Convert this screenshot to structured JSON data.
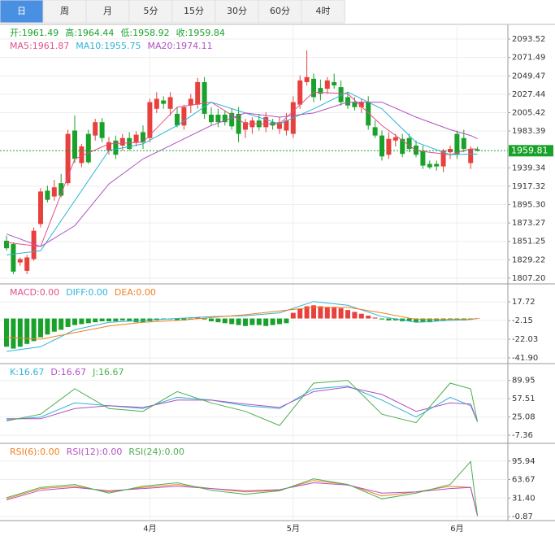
{
  "tabs": [
    "日",
    "周",
    "月",
    "5分",
    "15分",
    "30分",
    "60分",
    "4时"
  ],
  "active_tab": 0,
  "chart_data": [
    {
      "type": "candlestick",
      "up_color": "#e8403c",
      "down_color": "#19a22a",
      "ohlc_labels": [
        "开:",
        "高:",
        "低:",
        "收:"
      ],
      "ohlc_color": "#19a22a",
      "categories": [
        null,
        null,
        null,
        null,
        null,
        null,
        null,
        null,
        null,
        null,
        null,
        null,
        null,
        null,
        null,
        null,
        null,
        null,
        null,
        null,
        null,
        "4月",
        null,
        null,
        null,
        null,
        null,
        null,
        null,
        null,
        null,
        null,
        null,
        null,
        null,
        null,
        null,
        null,
        null,
        null,
        null,
        null,
        "5月",
        null,
        null,
        null,
        null,
        null,
        null,
        null,
        null,
        null,
        null,
        null,
        null,
        null,
        null,
        null,
        null,
        null,
        null,
        null,
        null,
        null,
        null,
        null,
        "6月",
        null,
        null,
        null
      ],
      "open": [
        1852,
        1848,
        1826,
        1816,
        1830,
        1872,
        1912,
        1905,
        1921,
        1921,
        1984,
        1945,
        1980,
        1978,
        1994,
        1960,
        1972,
        1966,
        1975,
        1970,
        1982,
        1975,
        2010,
        2020,
        2010,
        2004,
        1990,
        2014,
        2015,
        2042,
        2003,
        2003,
        2003,
        2005,
        2004,
        1985,
        1988,
        1996,
        1988,
        1994,
        1986,
        1984,
        1980,
        2015,
        2042,
        2046,
        2035,
        2034,
        2042,
        2036,
        2024,
        2018,
        2012,
        2018,
        1988,
        1978,
        1955,
        1972,
        1974,
        1975,
        1966,
        1960,
        1944,
        1944,
        1941,
        1958,
        1980,
        1975,
        1945,
        1961.49
      ],
      "high": [
        1858,
        1850,
        1832,
        1835,
        1868,
        1915,
        1918,
        1925,
        1932,
        1985,
        2002,
        1968,
        1985,
        1998,
        1999,
        1976,
        1978,
        1980,
        1982,
        1983,
        1990,
        2022,
        2030,
        2025,
        2030,
        2012,
        2015,
        2028,
        2047,
        2048,
        2012,
        2010,
        2008,
        2010,
        2012,
        1998,
        2000,
        2004,
        2006,
        1998,
        2000,
        2005,
        2025,
        2050,
        2080,
        2052,
        2045,
        2048,
        2052,
        2044,
        2030,
        2024,
        2022,
        2025,
        1996,
        1984,
        1982,
        1980,
        1980,
        1980,
        1972,
        1966,
        1948,
        1948,
        1962,
        1966,
        1984,
        1985,
        1965,
        1964.44
      ],
      "low": [
        1840,
        1812,
        1822,
        1812,
        1828,
        1868,
        1898,
        1900,
        1904,
        1918,
        1945,
        1940,
        1944,
        1972,
        1970,
        1955,
        1950,
        1960,
        1960,
        1965,
        1962,
        1970,
        2005,
        2010,
        2002,
        1988,
        1985,
        2005,
        2010,
        1998,
        1990,
        1988,
        1990,
        1985,
        1970,
        1975,
        1980,
        1984,
        1982,
        1985,
        1980,
        1978,
        1975,
        2010,
        2038,
        2018,
        2020,
        2028,
        2034,
        2014,
        2010,
        2008,
        2005,
        1985,
        1975,
        1948,
        1950,
        1965,
        1952,
        1958,
        1952,
        1938,
        1938,
        1936,
        1934,
        1950,
        1950,
        1958,
        1938,
        1958.92
      ],
      "close": [
        1843,
        1815,
        1830,
        1832,
        1864,
        1911,
        1901,
        1916,
        1906,
        1980,
        1950,
        1965,
        1946,
        1994,
        1975,
        1970,
        1955,
        1975,
        1962,
        1979,
        1970,
        2018,
        2022,
        2016,
        2024,
        1990,
        2012,
        2022,
        2042,
        2004,
        1994,
        1994,
        1994,
        1989,
        1980,
        1994,
        1996,
        1988,
        2000,
        1990,
        1994,
        1996,
        2018,
        2044,
        2048,
        2024,
        2028,
        2044,
        2038,
        2018,
        2014,
        2012,
        2018,
        1990,
        1978,
        1953,
        1974,
        1976,
        1956,
        1962,
        1955,
        1942,
        1940,
        1941,
        1960,
        1962,
        1955,
        1962,
        1962,
        1959.84
      ],
      "series": [
        {
          "name": "MA5:",
          "color": "#e0508a",
          "x": [
            0,
            5,
            10,
            15,
            20,
            25,
            30,
            35,
            40,
            45,
            50,
            55,
            60,
            65,
            68,
            69
          ],
          "values": [
            1850,
            1845,
            1950,
            1968,
            1970,
            2012,
            2018,
            1992,
            1992,
            2030,
            2028,
            1990,
            1960,
            1955,
            1962,
            1961.87
          ]
        },
        {
          "name": "MA10:",
          "color": "#2fb3d8",
          "x": [
            0,
            5,
            10,
            15,
            20,
            25,
            30,
            35,
            40,
            45,
            50,
            55,
            60,
            65,
            68,
            69
          ],
          "values": [
            1835,
            1840,
            1900,
            1960,
            1968,
            1990,
            2018,
            2005,
            1992,
            2010,
            2030,
            2010,
            1970,
            1955,
            1956,
            1955.75
          ]
        },
        {
          "name": "MA20:",
          "color": "#b051c2",
          "x": [
            0,
            5,
            10,
            15,
            20,
            25,
            30,
            35,
            40,
            45,
            50,
            55,
            60,
            65,
            68,
            69
          ],
          "values": [
            1860,
            1845,
            1870,
            1920,
            1950,
            1970,
            1990,
            2005,
            2000,
            2005,
            2018,
            2018,
            2000,
            1985,
            1978,
            1974.11
          ]
        }
      ],
      "last_price": 1959.81,
      "ylim": [
        1801.3,
        2111.1
      ],
      "yticks": [
        {
          "value": 1807.2,
          "label": "1807.20"
        },
        1829.22,
        1851.25,
        {
          "value": 1873.27,
          "label": "1873.27"
        },
        {
          "value": 1895.3,
          "label": "1895.30"
        },
        1917.32,
        1939.34,
        1983.39,
        2005.42,
        2027.44,
        2049.47,
        2071.49,
        2093.52
      ],
      "grid": true
    },
    {
      "type": "macd",
      "up_color": "#e8403c",
      "down_color": "#19a22a",
      "histogram": {
        "name": "MACD:",
        "color": "#e0508a",
        "values": [
          -30,
          -32,
          -30,
          -27,
          -24,
          -20,
          -17,
          -14,
          -12,
          -9,
          -7,
          -6,
          -5,
          -4,
          -3,
          -3,
          -3,
          -2,
          -3,
          -4,
          -4,
          -3,
          -2,
          -1,
          -1,
          -2,
          -2,
          -1,
          1,
          -1,
          -3,
          -4,
          -5,
          -6,
          -7,
          -8,
          -7,
          -7,
          -8,
          -7,
          -6,
          -5,
          6,
          10,
          13,
          14,
          13,
          12,
          12,
          11,
          9,
          7,
          5,
          3,
          1,
          -1,
          -2,
          -2,
          -3,
          -3,
          -4,
          -4,
          -4,
          -3,
          -2,
          -1,
          -1,
          -2,
          -1,
          {
            "value": 0,
            "label": "0.00"
          }
        ]
      },
      "series": [
        {
          "name": "DIFF:",
          "color": "#2fb3d8",
          "x": [
            0,
            5,
            10,
            15,
            20,
            25,
            30,
            35,
            40,
            45,
            50,
            55,
            60,
            65,
            68,
            69
          ],
          "values": [
            -35,
            -30,
            -12,
            -4,
            -2,
            0,
            2,
            3,
            6,
            18,
            14,
            2,
            -4,
            -2,
            -1,
            {
              "value": 0,
              "label": "0.00"
            }
          ]
        },
        {
          "name": "DEA:",
          "color": "#f08020",
          "x": [
            0,
            5,
            10,
            15,
            20,
            25,
            30,
            35,
            40,
            45,
            50,
            55,
            60,
            65,
            68,
            69
          ],
          "values": [
            -20,
            -22,
            -15,
            -8,
            -4,
            -2,
            1,
            4,
            8,
            12,
            12,
            6,
            -1,
            -1,
            -1,
            {
              "value": 0,
              "label": "0.00"
            }
          ]
        }
      ],
      "ylim": [
        -46.2,
        35.9
      ],
      "yticks": [
        {
          "value": -41.9,
          "label": "-41.90"
        },
        -22.03,
        -2.15,
        17.72
      ],
      "grid": true
    },
    {
      "type": "line",
      "series": [
        {
          "name": "K:",
          "color": "#2fb3d8",
          "x": [
            0,
            5,
            10,
            15,
            20,
            25,
            30,
            35,
            40,
            45,
            50,
            55,
            60,
            65,
            68,
            69
          ],
          "values": [
            20,
            25,
            50,
            45,
            40,
            60,
            55,
            45,
            40,
            75,
            80,
            55,
            25,
            60,
            45,
            16.67
          ]
        },
        {
          "name": "D:",
          "color": "#b051c2",
          "x": [
            0,
            5,
            10,
            15,
            20,
            25,
            30,
            35,
            40,
            45,
            50,
            55,
            60,
            65,
            68,
            69
          ],
          "values": [
            22,
            22,
            40,
            45,
            42,
            55,
            55,
            48,
            42,
            70,
            78,
            65,
            35,
            50,
            48,
            16.67
          ]
        },
        {
          "name": "J:",
          "color": "#4caf50",
          "x": [
            0,
            5,
            10,
            15,
            20,
            25,
            30,
            35,
            40,
            45,
            50,
            55,
            60,
            65,
            68,
            69
          ],
          "values": [
            18,
            30,
            75,
            40,
            35,
            70,
            50,
            35,
            10,
            85,
            90,
            30,
            15,
            85,
            75,
            16.67
          ]
        }
      ],
      "ylim": [
        -18.7,
        118.2
      ],
      "yticks": [
        -7.36,
        25.08,
        57.51,
        89.95
      ],
      "grid": true
    },
    {
      "type": "line",
      "series": [
        {
          "name": "RSI(6):",
          "color": "#f08020",
          "x": [
            0,
            5,
            10,
            15,
            20,
            25,
            30,
            35,
            40,
            45,
            50,
            55,
            60,
            65,
            68,
            69
          ],
          "values": [
            30,
            48,
            52,
            42,
            50,
            55,
            48,
            42,
            45,
            62,
            55,
            35,
            42,
            52,
            50,
            {
              "value": 0,
              "label": "0.00"
            }
          ]
        },
        {
          "name": "RSI(12):",
          "color": "#b051c2",
          "x": [
            0,
            5,
            10,
            15,
            20,
            25,
            30,
            35,
            40,
            45,
            50,
            55,
            60,
            65,
            68,
            69
          ],
          "values": [
            28,
            45,
            50,
            44,
            48,
            52,
            48,
            44,
            46,
            58,
            54,
            40,
            42,
            48,
            50,
            {
              "value": 0,
              "label": "0.00"
            }
          ]
        },
        {
          "name": "RSI(24):",
          "color": "#4caf50",
          "x": [
            0,
            5,
            10,
            15,
            20,
            25,
            30,
            35,
            40,
            45,
            50,
            55,
            60,
            65,
            68,
            69
          ],
          "values": [
            32,
            50,
            55,
            40,
            52,
            58,
            45,
            38,
            44,
            65,
            55,
            30,
            40,
            55,
            95,
            {
              "value": 0,
              "label": "0.00"
            }
          ]
        }
      ],
      "ylim": [
        -7.9,
        125.4
      ],
      "yticks": [
        -0.87,
        {
          "value": 31.4,
          "label": "31.40"
        },
        63.67,
        95.94
      ],
      "grid": true
    }
  ]
}
